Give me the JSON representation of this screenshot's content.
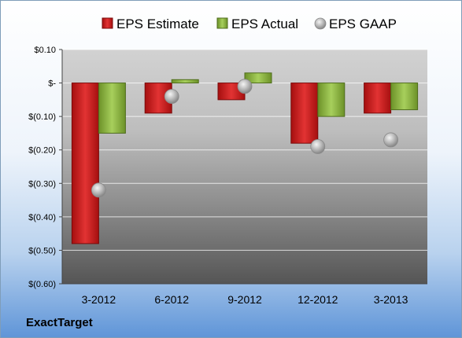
{
  "company": "ExactTarget",
  "chart_data": {
    "type": "bar",
    "categories": [
      "3-2012",
      "6-2012",
      "9-2012",
      "12-2012",
      "3-2013"
    ],
    "series": [
      {
        "name": "EPS Estimate",
        "kind": "bar",
        "color": "#cc1f1f",
        "values": [
          -0.48,
          -0.09,
          -0.05,
          -0.18,
          -0.09
        ]
      },
      {
        "name": "EPS Actual",
        "kind": "bar",
        "color": "#86b03e",
        "values": [
          -0.15,
          0.01,
          0.03,
          -0.1,
          -0.08
        ]
      },
      {
        "name": "EPS GAAP",
        "kind": "marker",
        "color": "#a8a8a8",
        "values": [
          -0.32,
          -0.04,
          -0.01,
          -0.19,
          -0.17
        ]
      }
    ],
    "ylim": [
      -0.6,
      0.1
    ],
    "yticks": [
      0.1,
      0.0,
      -0.1,
      -0.2,
      -0.3,
      -0.4,
      -0.5,
      -0.6
    ],
    "ytick_labels": [
      "$0.10",
      "$-",
      "$(0.10)",
      "$(0.20)",
      "$(0.30)",
      "$(0.40)",
      "$(0.50)",
      "$(0.60)"
    ],
    "legend_position": "top",
    "grid": true
  }
}
